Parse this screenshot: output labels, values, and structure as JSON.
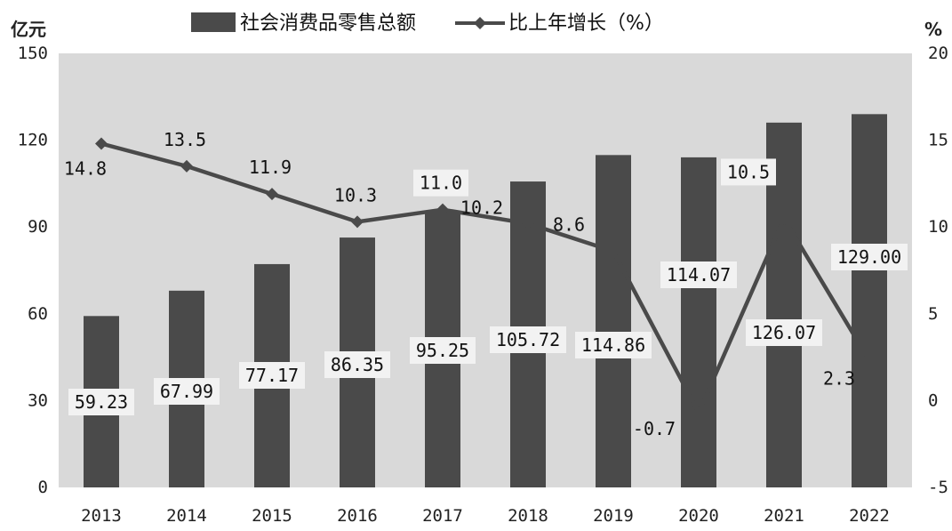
{
  "chart_data": {
    "type": "bar+line",
    "categories": [
      "2013",
      "2014",
      "2015",
      "2016",
      "2017",
      "2018",
      "2019",
      "2020",
      "2021",
      "2022"
    ],
    "series": [
      {
        "name": "社会消费品零售总额",
        "type": "bar",
        "axis": "left",
        "values": [
          59.23,
          67.99,
          77.17,
          86.35,
          95.25,
          105.72,
          114.86,
          114.07,
          126.07,
          129.0
        ],
        "labels": [
          "59.23",
          "67.99",
          "77.17",
          "86.35",
          "95.25",
          "105.72",
          "114.86",
          "114.07",
          "126.07",
          "129.00"
        ]
      },
      {
        "name": "比上年增长（%）",
        "type": "line",
        "axis": "right",
        "values": [
          14.8,
          13.5,
          11.9,
          10.3,
          11.0,
          10.2,
          8.6,
          -0.7,
          10.5,
          2.3
        ],
        "labels": [
          "14.8",
          "13.5",
          "11.9",
          "10.3",
          "11.0",
          "10.2",
          "8.6",
          "-0.7",
          "10.5",
          "2.3"
        ]
      }
    ],
    "y_left": {
      "label": "亿元",
      "ylim": [
        0,
        150
      ],
      "ticks": [
        "0",
        "30",
        "60",
        "90",
        "120",
        "150"
      ]
    },
    "y_right": {
      "label": "%",
      "ylim": [
        -5,
        20
      ],
      "ticks": [
        "-5",
        "0",
        "5",
        "10",
        "15",
        "20"
      ]
    },
    "legend": {
      "position": "top"
    },
    "grid": false,
    "colors": {
      "plot_bg": "#d9d9d9",
      "bar": "#4a4a4a",
      "line": "#4a4a4a",
      "label_box": "#f2f2f2"
    }
  }
}
